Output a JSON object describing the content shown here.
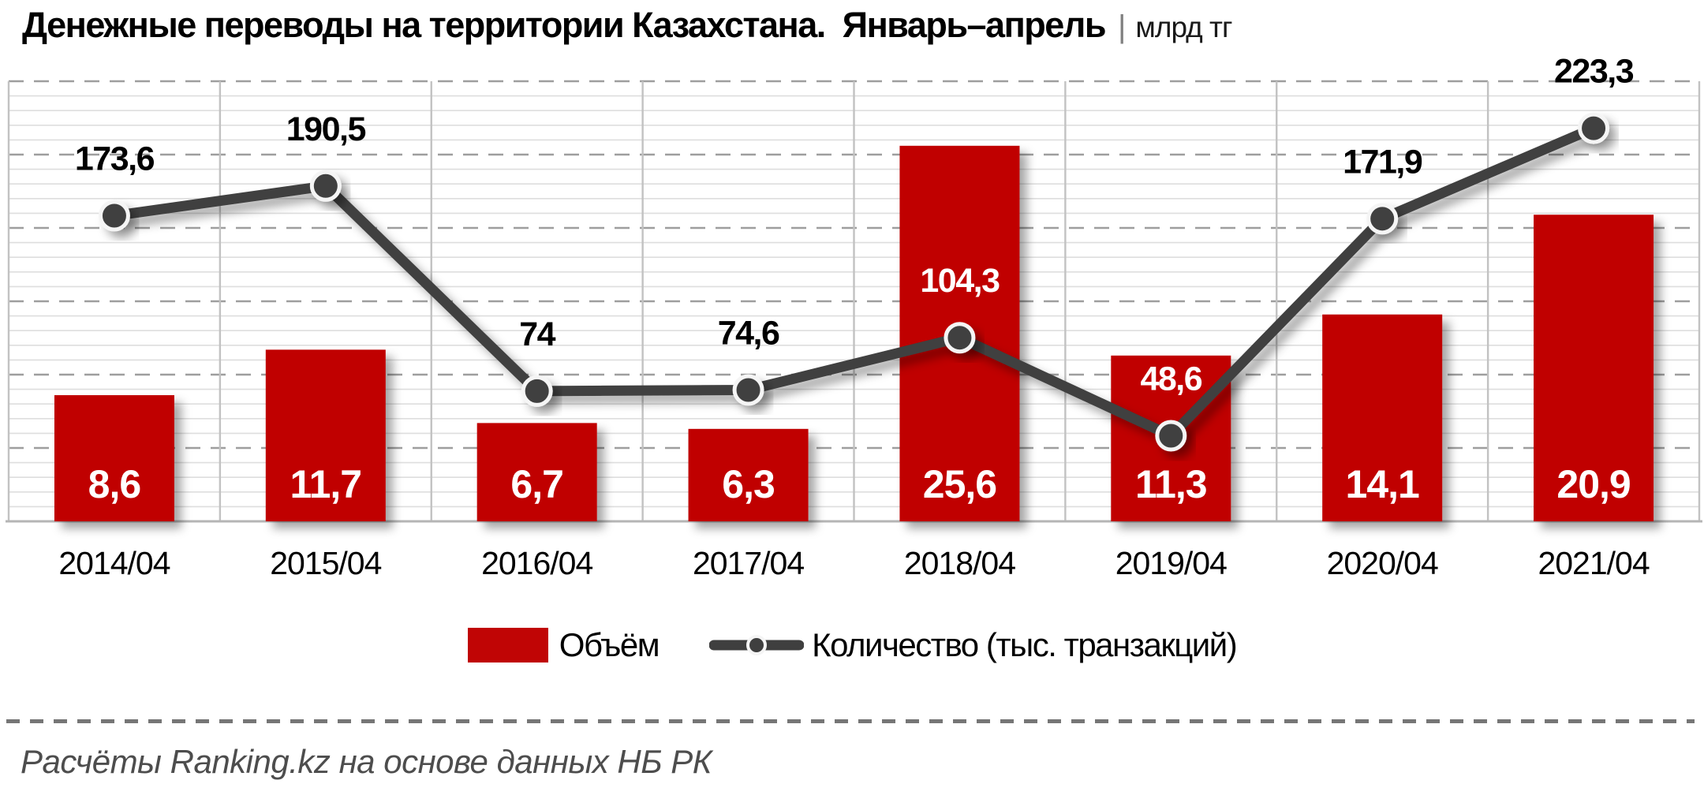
{
  "title": {
    "text": "Денежные переводы на территории Казахстана.  Январь–апрель",
    "separator": "|",
    "unit": "млрд тг"
  },
  "chart_data": {
    "type": "bar+line",
    "title": "Денежные переводы на территории Казахстана. Январь–апрель, млрд тг",
    "categories": [
      "2014/04",
      "2015/04",
      "2016/04",
      "2017/04",
      "2018/04",
      "2019/04",
      "2020/04",
      "2021/04"
    ],
    "series": [
      {
        "name": "Объём",
        "type": "bar",
        "color": "#c00505",
        "axis": "left",
        "values": [
          8.6,
          11.7,
          6.7,
          6.3,
          25.6,
          11.3,
          14.1,
          20.9
        ],
        "labels": [
          "8,6",
          "11,7",
          "6,7",
          "6,3",
          "25,6",
          "11,3",
          "14,1",
          "20,9"
        ],
        "label_color": "#ffffff"
      },
      {
        "name": "Количество (тыс. транзакций)",
        "type": "line",
        "color": "#3f3f3f",
        "marker_ring_color": "#f5f5f5",
        "axis": "right",
        "values": [
          173.6,
          190.5,
          74,
          74.6,
          104.3,
          48.6,
          171.9,
          223.3
        ],
        "labels": [
          "173,6",
          "190,5",
          "74",
          "74,6",
          "104,3",
          "48,6",
          "171,9",
          "223,3"
        ],
        "label_color": "#000000",
        "label_color_on_bar": "#ffffff"
      }
    ],
    "left_axis": {
      "min": 0,
      "max": 30,
      "visible": false,
      "minor_grid_step": 1,
      "major_grid_step": 5
    },
    "right_axis": {
      "min": 0,
      "max": 250,
      "visible": false
    },
    "grid": {
      "on": true,
      "minor_color": "#dedede",
      "major_dashed_color": "#9e9e9e",
      "vertical_color": "#c2c2c2",
      "baseline_color": "#b5b5b5"
    },
    "legend_position": "bottom"
  },
  "legend": {
    "items": [
      {
        "label": "Объём"
      },
      {
        "label": "Количество (тыс. транзакций)"
      }
    ]
  },
  "footer": {
    "source_note": "Расчёты Ranking.kz на основе данных НБ РК"
  }
}
